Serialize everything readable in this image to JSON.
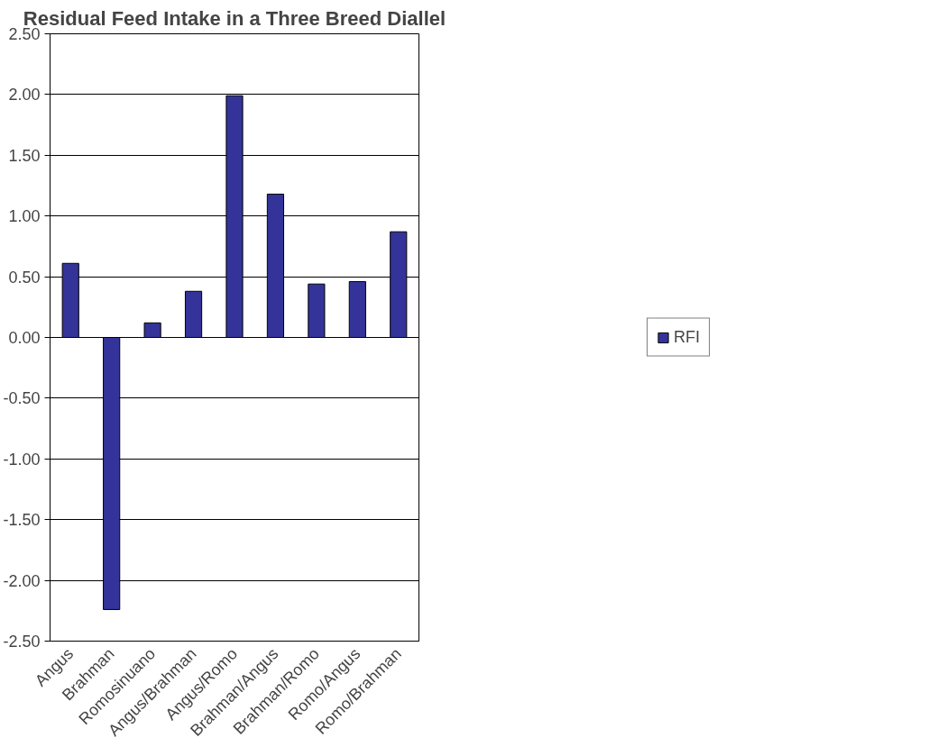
{
  "chart_data": {
    "type": "bar",
    "title": "Residual Feed Intake in a Three Breed Diallel",
    "categories": [
      "Angus",
      "Brahman",
      "Romosinuano",
      "Angus/Brahman",
      "Angus/Romo",
      "Brahman/Angus",
      "Brahman/Romo",
      "Romo/Angus",
      "Romo/Brahman"
    ],
    "series": [
      {
        "name": "RFI",
        "color": "#333399",
        "values": [
          0.61,
          -2.24,
          0.12,
          0.38,
          1.99,
          1.18,
          0.44,
          0.46,
          0.87
        ]
      }
    ],
    "ylim": [
      -2.5,
      2.5
    ],
    "yticks": [
      {
        "value": -2.5,
        "label": "-2.50"
      },
      {
        "value": -2,
        "label": "-2.00"
      },
      {
        "value": -1.5,
        "label": "-1.50"
      },
      {
        "value": -1,
        "label": "-1.00"
      },
      {
        "value": -0.5,
        "label": "-0.50"
      },
      {
        "value": 0,
        "label": "0.00"
      },
      {
        "value": 0.5,
        "label": "0.50"
      },
      {
        "value": 1,
        "label": "1.00"
      },
      {
        "value": 1.5,
        "label": "1.50"
      },
      {
        "value": 2,
        "label": "2.00"
      },
      {
        "value": 2.5,
        "label": "2.50"
      }
    ],
    "grid": "y",
    "legend": "right"
  }
}
